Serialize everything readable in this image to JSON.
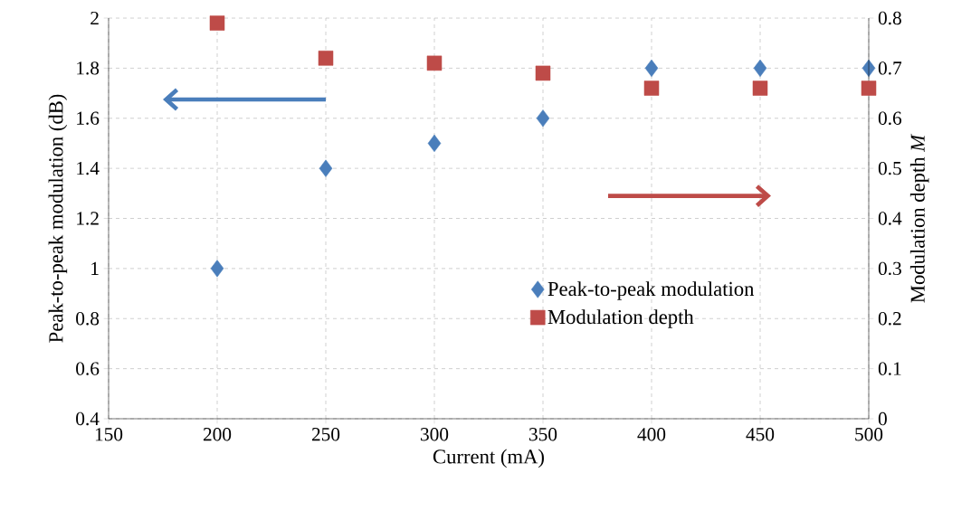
{
  "chart_data": {
    "type": "scatter",
    "xlabel": "Current (mA)",
    "ylabel": "Peak-to-peak modulation (dB)",
    "y2label": "Modulation depth *M*",
    "x": [
      200,
      250,
      300,
      350,
      400,
      450,
      500
    ],
    "series": [
      {
        "name": "Peak-to-peak modulation",
        "color": "#4a7ebb",
        "marker": "diamond",
        "values": [
          1.0,
          1.4,
          1.5,
          1.6,
          1.8,
          1.8,
          1.8
        ]
      },
      {
        "name": "Modulation depth",
        "color": "#be4b48",
        "marker": "square",
        "axis": "y2",
        "values": [
          0.79,
          0.72,
          0.71,
          0.69,
          0.66,
          0.66,
          0.66
        ]
      }
    ],
    "xlim": [
      150,
      500
    ],
    "xticks": [
      150,
      200,
      250,
      300,
      350,
      400,
      450,
      500
    ],
    "ylim": [
      0.4,
      2
    ],
    "yticks": [
      0.4,
      0.6,
      0.8,
      1,
      1.2,
      1.4,
      1.6,
      1.8,
      2
    ],
    "y2lim": [
      0,
      0.8
    ],
    "y2ticks": [
      0,
      0.1,
      0.2,
      0.3,
      0.4,
      0.5,
      0.6,
      0.7,
      0.8
    ],
    "grid": true,
    "legend": "right"
  }
}
